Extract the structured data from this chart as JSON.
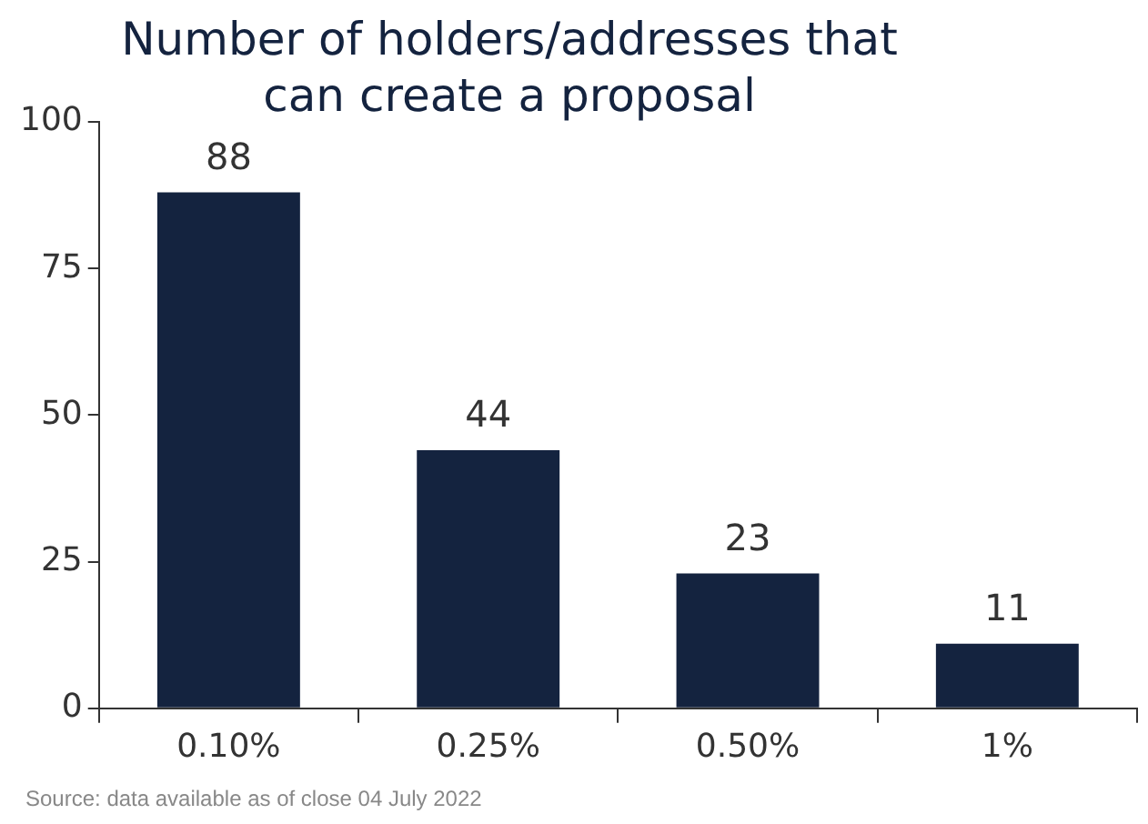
{
  "chart_data": {
    "type": "bar",
    "title": "Number of holders/addresses that can create a proposal",
    "categories": [
      "0.10%",
      "0.25%",
      "0.50%",
      "1%"
    ],
    "values": [
      88,
      44,
      23,
      11
    ],
    "color": "#14233f",
    "ylim": [
      0,
      100
    ],
    "yticks": [
      0,
      25,
      50,
      75,
      100
    ],
    "grid": false,
    "legend": false,
    "data_labels": true,
    "annotations": [
      "Source: data available as of close 04 July 2022"
    ]
  }
}
